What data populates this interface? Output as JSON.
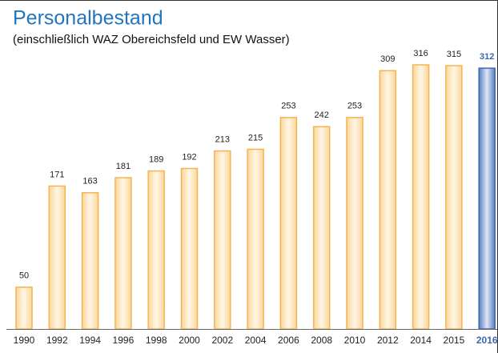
{
  "chart_data": {
    "type": "bar",
    "title": "Personalbestand",
    "subtitle": "(einschließlich WAZ Obereichsfeld und EW Wasser)",
    "categories": [
      "1990",
      "1992",
      "1994",
      "1996",
      "1998",
      "2000",
      "2002",
      "2004",
      "2006",
      "2008",
      "2010",
      "2012",
      "2014",
      "2015",
      "2016"
    ],
    "values": [
      50,
      171,
      163,
      181,
      189,
      192,
      213,
      215,
      253,
      242,
      253,
      309,
      316,
      315,
      312
    ],
    "color": "#f5b452",
    "highlight_color": "#3f67b0",
    "highlight_index": 14
  }
}
